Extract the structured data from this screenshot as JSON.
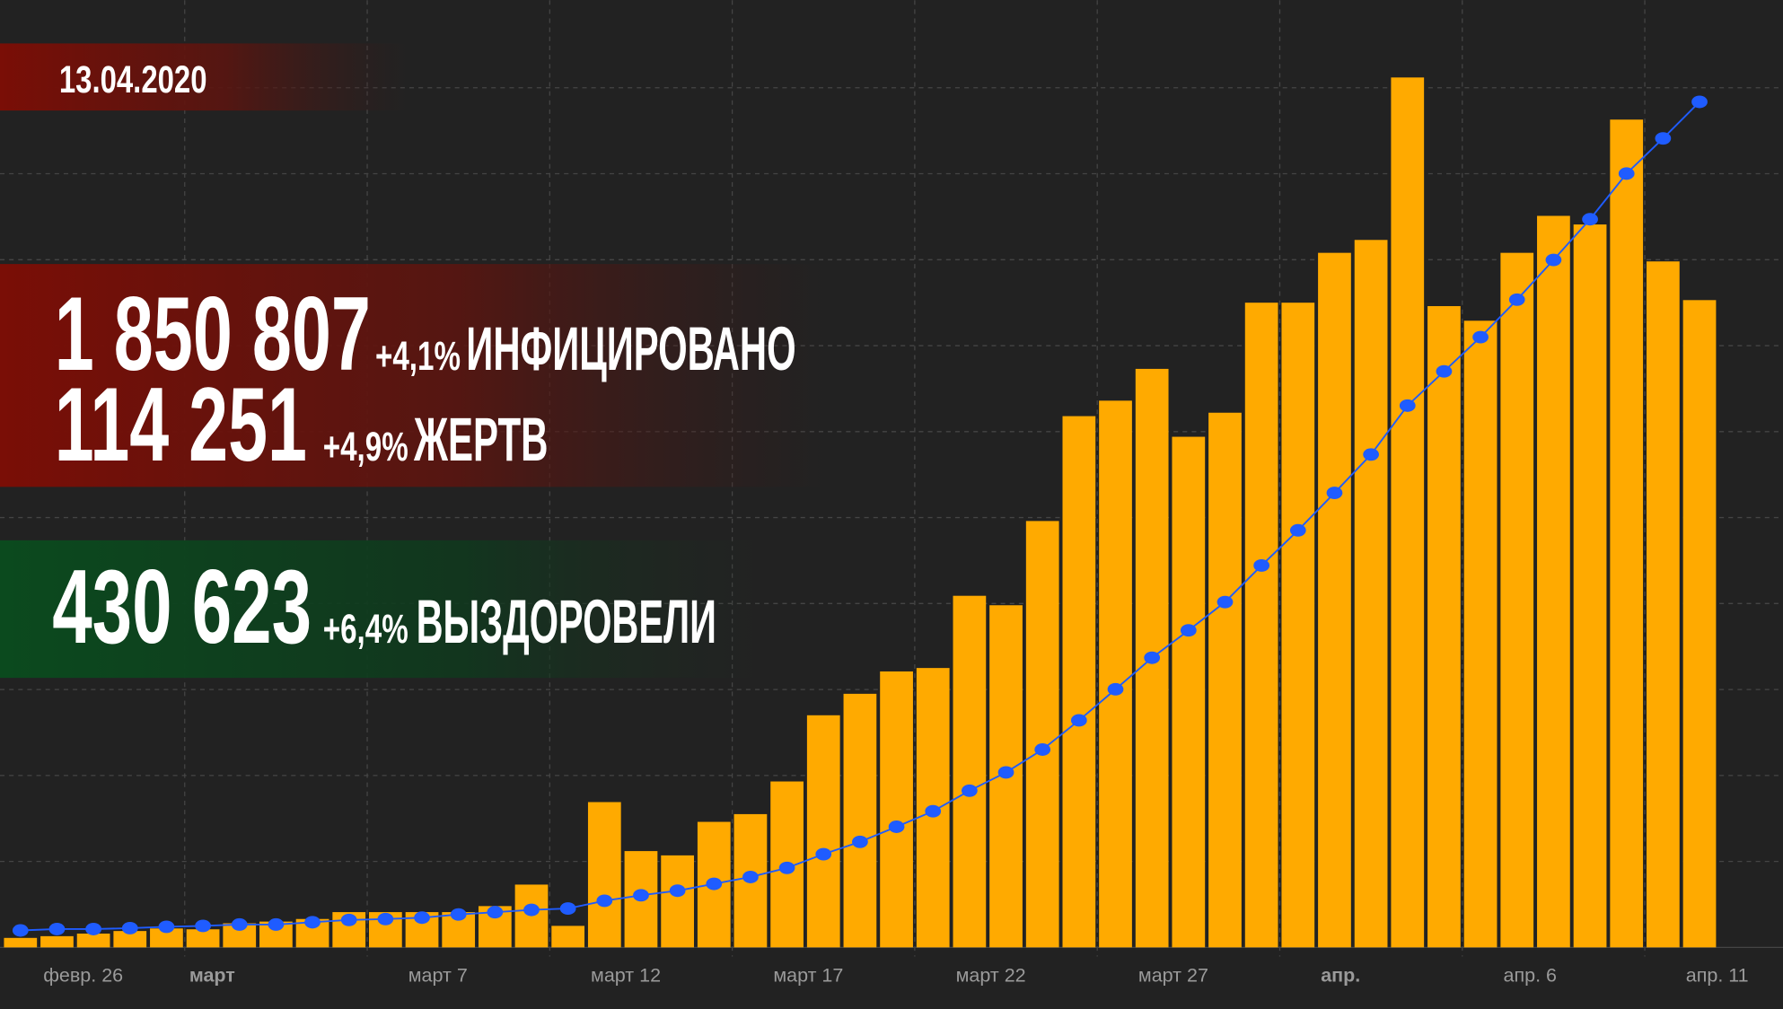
{
  "overlay": {
    "date": "13.04.2020",
    "stats": [
      {
        "value": "1 850 807",
        "change": "+4,1%",
        "label": "ИНФИЦИРОВАНО"
      },
      {
        "value": "114 251",
        "change": "+4,9%",
        "label": "ЖЕРТВ"
      },
      {
        "value": "430 623",
        "change": "+6,4%",
        "label": "ВЫЗДОРОВЕЛИ"
      }
    ]
  },
  "chart_data": {
    "type": "bar",
    "categories": [
      null,
      "февр. 26",
      null,
      null,
      null,
      "март",
      null,
      null,
      null,
      null,
      null,
      "март 7",
      null,
      null,
      null,
      null,
      "март 12",
      null,
      null,
      null,
      null,
      "март 17",
      null,
      null,
      null,
      null,
      "март 22",
      null,
      null,
      null,
      null,
      "март 27",
      null,
      null,
      null,
      null,
      "апр.",
      null,
      null,
      null,
      null,
      "апр. 6",
      null,
      null,
      null,
      null,
      "апр. 11"
    ],
    "series": [
      {
        "type": "bar",
        "color": "#ffaa00",
        "values": [
          1.1,
          1.3,
          1.6,
          1.9,
          2.2,
          2.1,
          2.8,
          3.0,
          3.3,
          4.1,
          4.1,
          4.1,
          4.1,
          4.8,
          7.3,
          2.5,
          16.9,
          11.2,
          10.7,
          14.6,
          15.5,
          19.3,
          27.0,
          29.5,
          32.1,
          32.5,
          40.9,
          39.8,
          49.6,
          61.8,
          63.6,
          67.3,
          59.4,
          62.2,
          75.0,
          75.0,
          80.8,
          82.3,
          101.2,
          74.6,
          72.9,
          80.8,
          85.1,
          84.1,
          96.3,
          79.8,
          75.3
        ]
      },
      {
        "type": "line",
        "color": "#1f5cff",
        "axis": "y2",
        "values": [
          37,
          40,
          40,
          42,
          45,
          47,
          50,
          50,
          55,
          60,
          62,
          65,
          72,
          77,
          82,
          85,
          102,
          114,
          124,
          139,
          154,
          174,
          204,
          231,
          264,
          298,
          343,
          383,
          433,
          497,
          565,
          634,
          694,
          756,
          836,
          913,
          995,
          1079,
          1186,
          1261,
          1336,
          1418,
          1505,
          1594,
          1694,
          1771,
          1851
        ]
      }
    ],
    "ylim": [
      0,
      110
    ],
    "yticks": [
      0,
      10,
      20,
      30,
      40,
      50,
      60,
      70,
      80,
      90,
      100
    ],
    "y2lim": [
      0,
      2070
    ],
    "grid": true
  }
}
